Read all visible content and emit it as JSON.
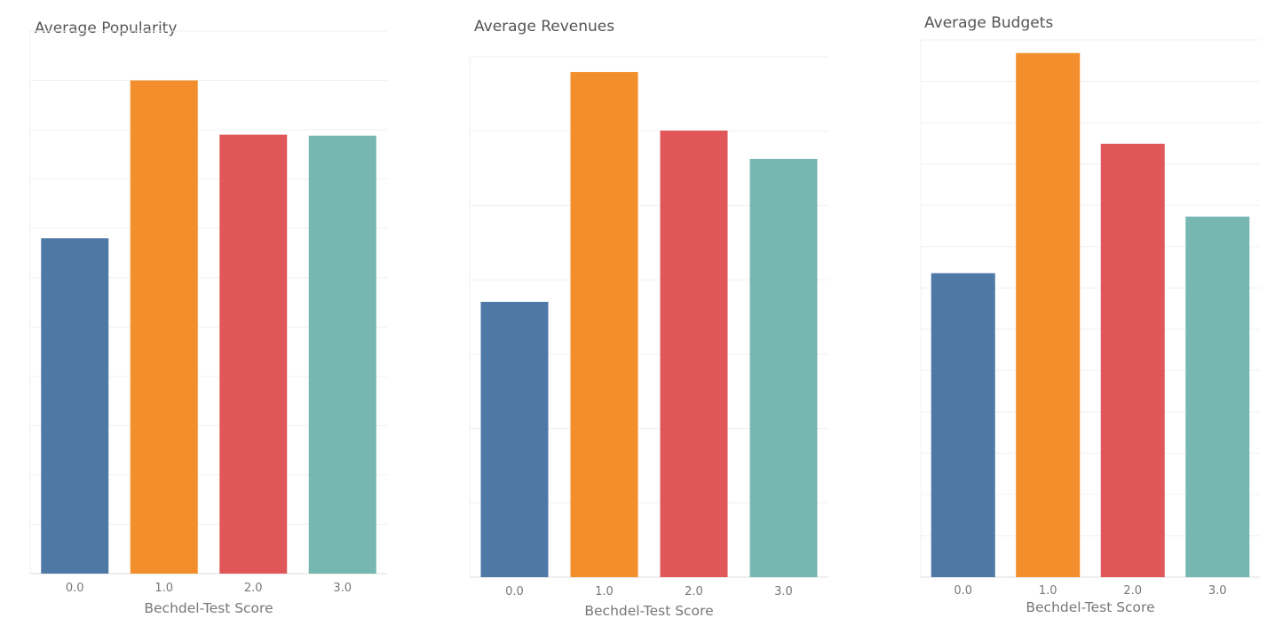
{
  "colors": {
    "gridline": "#f0f0f0",
    "axis": "#dddddd",
    "tick_text": "#777777",
    "series": [
      "#4e79a7",
      "#f28e2b",
      "#e15759",
      "#76b7b2"
    ]
  },
  "chart_data": [
    {
      "type": "bar",
      "title": "Average Popularity",
      "xlabel": "Bechdel-Test Score",
      "ylabel": "",
      "categories": [
        "0.0",
        "1.0",
        "2.0",
        "3.0"
      ],
      "values": [
        0.68,
        1.0,
        0.89,
        0.888
      ],
      "ylim": [
        0,
        1.1
      ],
      "gridlines": 11,
      "grid": true,
      "y_tick_labels": false
    },
    {
      "type": "bar",
      "title": "Average Revenues",
      "xlabel": "Bechdel-Test Score",
      "ylabel": "",
      "categories": [
        "0.0",
        "1.0",
        "2.0",
        "3.0"
      ],
      "values": [
        0.545,
        1.0,
        0.884,
        0.828
      ],
      "ylim": [
        0,
        1.03
      ],
      "gridlines": 7,
      "grid": true,
      "y_tick_labels": false
    },
    {
      "type": "bar",
      "title": "Average Budgets",
      "xlabel": "Bechdel-Test Score",
      "ylabel": "",
      "categories": [
        "0.0",
        "1.0",
        "2.0",
        "3.0"
      ],
      "values": [
        0.58,
        1.0,
        0.827,
        0.688
      ],
      "ylim": [
        0,
        1.025
      ],
      "gridlines": 13,
      "grid": true,
      "y_tick_labels": false
    }
  ]
}
